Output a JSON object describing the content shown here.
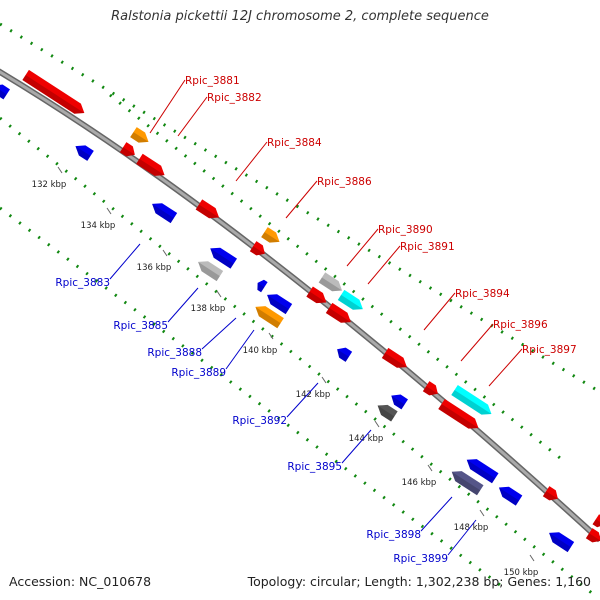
{
  "title": "Ralstonia pickettii 12J chromosome 2, complete sequence",
  "footer": {
    "accession_label": "Accession:",
    "accession": "NC_010678",
    "topology_label": "Topology:",
    "topology": "circular;",
    "length_label": "Length:",
    "length": "1,302,238 bp;",
    "genes_label": "Genes:",
    "genes": "1,160"
  },
  "colors": {
    "forward": "#ee0000",
    "reverse": "#0000ee",
    "orange": "#ff9900",
    "light_gray": "#bbbbbb",
    "cyan": "#00ffff",
    "dark_gray": "#555555",
    "slate": "#555588",
    "backbone": "#888888",
    "dots": "#118811",
    "forward_label": "#cc0000",
    "reverse_label": "#0000cc"
  },
  "ticks": [
    "132 kbp",
    "134 kbp",
    "136 kbp",
    "138 kbp",
    "140 kbp",
    "142 kbp",
    "144 kbp",
    "146 kbp",
    "148 kbp",
    "150 kbp"
  ],
  "labels": {
    "forward": [
      "Rpic_3881",
      "Rpic_3882",
      "Rpic_3884",
      "Rpic_3886",
      "Rpic_3890",
      "Rpic_3891",
      "Rpic_3894",
      "Rpic_3896",
      "Rpic_3897"
    ],
    "reverse": [
      "Rpic_3883",
      "Rpic_3885",
      "Rpic_3888",
      "Rpic_3889",
      "Rpic_3892",
      "Rpic_3895",
      "Rpic_3898",
      "Rpic_3899"
    ]
  }
}
